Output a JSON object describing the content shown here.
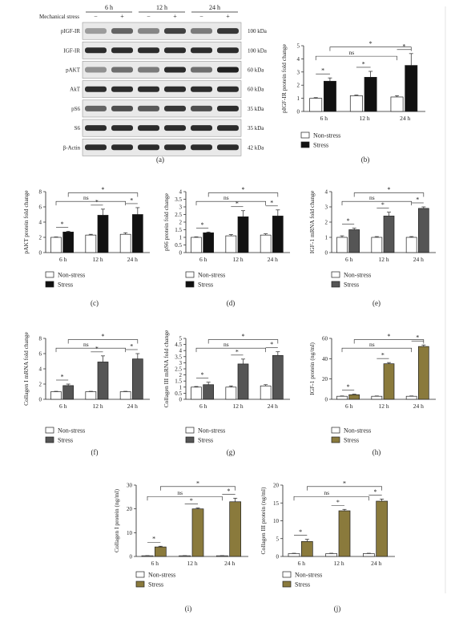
{
  "panels": [
    {
      "label": "(a)",
      "kind": "blot"
    },
    {
      "label": "(b)",
      "ylabel": "pIGF-IR protein fold change"
    },
    {
      "label": "(c)",
      "ylabel": "pAKT protein fold change"
    },
    {
      "label": "(d)",
      "ylabel": "pS6 protein fold change"
    },
    {
      "label": "(e)",
      "ylabel": "IGF-1 mRNA fold change"
    },
    {
      "label": "(f)",
      "ylabel": "Collagen I mRNA fold change"
    },
    {
      "label": "(g)",
      "ylabel": "Collagen III mRNA fold change"
    },
    {
      "label": "(h)",
      "ylabel": "IGF-1 protein (ng/ml)"
    },
    {
      "label": "(i)",
      "ylabel": "Collagen I protein (ng/ml)"
    },
    {
      "label": "(j)",
      "ylabel": "Collagen III protein (ng/ml)"
    }
  ],
  "blot": {
    "time_labels": [
      "6 h",
      "12 h",
      "24 h"
    ],
    "stress_row_label": "Mechanical stress",
    "stress_signs": [
      "−",
      "+",
      "−",
      "+",
      "−",
      "+"
    ],
    "rows": [
      {
        "name": "pIGF-IR",
        "kda": "100 kDa",
        "intensity": [
          0.35,
          0.6,
          0.45,
          0.75,
          0.5,
          0.8
        ]
      },
      {
        "name": "IGF-IR",
        "kda": "100 kDa",
        "intensity": [
          0.85,
          0.85,
          0.85,
          0.85,
          0.85,
          0.85
        ]
      },
      {
        "name": "pAKT",
        "kda": "60 kDa",
        "intensity": [
          0.4,
          0.55,
          0.5,
          0.85,
          0.55,
          0.9
        ]
      },
      {
        "name": "AkT",
        "kda": "60 kDa",
        "intensity": [
          0.85,
          0.85,
          0.85,
          0.85,
          0.85,
          0.85
        ]
      },
      {
        "name": "pS6",
        "kda": "35 kDa",
        "intensity": [
          0.6,
          0.7,
          0.65,
          0.8,
          0.7,
          0.85
        ]
      },
      {
        "name": "S6",
        "kda": "35 kDa",
        "intensity": [
          0.85,
          0.85,
          0.85,
          0.85,
          0.85,
          0.85
        ]
      },
      {
        "name": "β-Actin",
        "kda": "42 kDa",
        "intensity": [
          0.85,
          0.85,
          0.85,
          0.85,
          0.85,
          0.85
        ]
      }
    ]
  },
  "legend": {
    "nonstress": "Non-stress",
    "stress": "Stress"
  },
  "sig": {
    "star": "*",
    "ns": "ns"
  },
  "colors": {
    "dark": "#111111",
    "gray": "#555555",
    "olive": "#8a7a3c",
    "white": "#ffffff"
  },
  "chart_data": [
    {
      "panel": "b",
      "type": "bar",
      "categories": [
        "6 h",
        "12 h",
        "24 h"
      ],
      "ylabel": "pIGF-IR protein fold change",
      "ylim": [
        0,
        5
      ],
      "yticks": [
        0,
        1,
        2,
        3,
        4,
        5
      ],
      "series": [
        {
          "name": "Non-stress",
          "values": [
            1.0,
            1.2,
            1.1
          ],
          "errors": [
            0.05,
            0.05,
            0.1
          ]
        },
        {
          "name": "Stress",
          "values": [
            2.3,
            2.6,
            3.5
          ],
          "errors": [
            0.25,
            0.45,
            0.9
          ]
        }
      ]
    },
    {
      "panel": "c",
      "type": "bar",
      "categories": [
        "6 h",
        "12 h",
        "24 h"
      ],
      "ylabel": "pAKT protein fold change",
      "ylim": [
        0,
        8
      ],
      "yticks": [
        0,
        2,
        4,
        6,
        8
      ],
      "series": [
        {
          "name": "Non-stress",
          "values": [
            2.0,
            2.3,
            2.4
          ],
          "errors": [
            0.05,
            0.1,
            0.2
          ]
        },
        {
          "name": "Stress",
          "values": [
            2.7,
            4.9,
            5.0
          ],
          "errors": [
            0.1,
            0.8,
            0.9
          ]
        }
      ]
    },
    {
      "panel": "d",
      "type": "bar",
      "categories": [
        "6 h",
        "12 h",
        "24 h"
      ],
      "ylabel": "pS6 protein fold change",
      "ylim": [
        0,
        4
      ],
      "yticks": [
        0,
        0.5,
        1,
        1.5,
        2,
        2.5,
        3,
        3.5,
        4
      ],
      "series": [
        {
          "name": "Non-stress",
          "values": [
            1.0,
            1.1,
            1.15
          ],
          "errors": [
            0.03,
            0.08,
            0.08
          ]
        },
        {
          "name": "Stress",
          "values": [
            1.3,
            2.35,
            2.4
          ],
          "errors": [
            0.05,
            0.4,
            0.4
          ]
        }
      ]
    },
    {
      "panel": "e",
      "type": "bar",
      "categories": [
        "6 h",
        "12 h",
        "24 h"
      ],
      "ylabel": "IGF-1 mRNA fold change",
      "ylim": [
        0,
        4
      ],
      "yticks": [
        0,
        1,
        2,
        3,
        4
      ],
      "series": [
        {
          "name": "Non-stress",
          "values": [
            1.0,
            1.0,
            1.0
          ],
          "errors": [
            0.1,
            0.05,
            0.05
          ]
        },
        {
          "name": "Stress",
          "values": [
            1.5,
            2.4,
            2.9
          ],
          "errors": [
            0.1,
            0.25,
            0.1
          ]
        }
      ]
    },
    {
      "panel": "f",
      "type": "bar",
      "categories": [
        "6 h",
        "12 h",
        "24 h"
      ],
      "ylabel": "Collagen I mRNA fold change",
      "ylim": [
        0,
        8
      ],
      "yticks": [
        0,
        2,
        4,
        6,
        8
      ],
      "series": [
        {
          "name": "Non-stress",
          "values": [
            1.0,
            1.0,
            1.0
          ],
          "errors": [
            0.05,
            0.05,
            0.05
          ]
        },
        {
          "name": "Stress",
          "values": [
            1.8,
            4.9,
            5.3
          ],
          "errors": [
            0.2,
            0.8,
            0.7
          ]
        }
      ]
    },
    {
      "panel": "g",
      "type": "bar",
      "categories": [
        "6 h",
        "12 h",
        "24 h"
      ],
      "ylabel": "Collagen III mRNA fold change",
      "ylim": [
        0,
        5
      ],
      "yticks": [
        0,
        0.5,
        1,
        1.5,
        2,
        2.5,
        3,
        3.5,
        4,
        4.5,
        5
      ],
      "series": [
        {
          "name": "Non-stress",
          "values": [
            1.0,
            1.0,
            1.1
          ],
          "errors": [
            0.05,
            0.1,
            0.1
          ]
        },
        {
          "name": "Stress",
          "values": [
            1.2,
            2.9,
            3.6
          ],
          "errors": [
            0.2,
            0.4,
            0.3
          ]
        }
      ]
    },
    {
      "panel": "h",
      "type": "bar",
      "categories": [
        "6 h",
        "12 h",
        "24 h"
      ],
      "ylabel": "IGF-1 protein (ng/ml)",
      "ylim": [
        0,
        60
      ],
      "yticks": [
        0,
        20,
        40,
        60
      ],
      "series": [
        {
          "name": "Non-stress",
          "values": [
            3,
            3,
            3
          ],
          "errors": [
            0.3,
            0.3,
            0.3
          ]
        },
        {
          "name": "Stress",
          "values": [
            4.5,
            35,
            52
          ],
          "errors": [
            0.5,
            1.2,
            1.5
          ]
        }
      ]
    },
    {
      "panel": "i",
      "type": "bar",
      "categories": [
        "6 h",
        "12 h",
        "24 h"
      ],
      "ylabel": "Collagen I protein (ng/ml)",
      "ylim": [
        0,
        30
      ],
      "yticks": [
        0,
        10,
        20,
        30
      ],
      "series": [
        {
          "name": "Non-stress",
          "values": [
            0.3,
            0.3,
            0.3
          ],
          "errors": [
            0.05,
            0.05,
            0.05
          ]
        },
        {
          "name": "Stress",
          "values": [
            4,
            20,
            23
          ],
          "errors": [
            0.3,
            0.4,
            1.5
          ]
        }
      ]
    },
    {
      "panel": "j",
      "type": "bar",
      "categories": [
        "6 h",
        "12 h",
        "24 h"
      ],
      "ylabel": "Collagen III protein (ng/ml)",
      "ylim": [
        0,
        20
      ],
      "yticks": [
        0,
        5,
        10,
        15,
        20
      ],
      "series": [
        {
          "name": "Non-stress",
          "values": [
            0.8,
            0.8,
            0.8
          ],
          "errors": [
            0.1,
            0.1,
            0.1
          ]
        },
        {
          "name": "Stress",
          "values": [
            4.2,
            12.8,
            15.5
          ],
          "errors": [
            0.6,
            0.4,
            0.6
          ]
        }
      ]
    }
  ]
}
